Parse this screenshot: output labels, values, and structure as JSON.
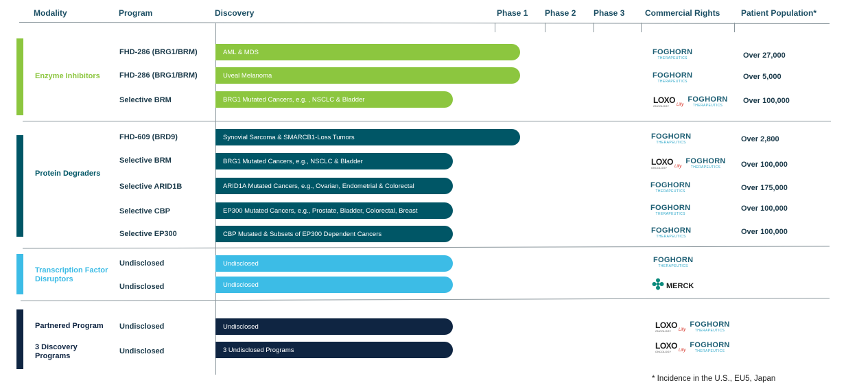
{
  "headers": {
    "modality": "Modality",
    "program": "Program",
    "discovery": "Discovery",
    "phase1": "Phase 1",
    "phase2": "Phase 2",
    "phase3": "Phase 3",
    "rights": "Commercial Rights",
    "population": "Patient Population*"
  },
  "colors": {
    "enzyme": "#8cc63f",
    "degrader": "#005666",
    "transcription": "#3cbce6",
    "partnered": "#0f2542",
    "header_text": "#1b4e63"
  },
  "logos": {
    "foghorn_main": "FOGHORN",
    "foghorn_sub": "THERAPEUTICS",
    "loxo_main": "LOXO",
    "loxo_sub": "ONCOLOGY",
    "lilly": "Lilly",
    "merck": "MERCK"
  },
  "groups": [
    {
      "label": "Enzyme Inhibitors",
      "color_key": "enzyme"
    },
    {
      "label": "Protein Degraders",
      "color_key": "degrader"
    },
    {
      "label": "Transcription Factor Disruptors",
      "color_key": "transcription"
    },
    {
      "label": "Partnered Program",
      "color_key": "partnered"
    },
    {
      "label": "3 Discovery Programs",
      "color_key": "partnered"
    }
  ],
  "chart_data": {
    "type": "table",
    "stages": [
      "Discovery",
      "Phase 1",
      "Phase 2",
      "Phase 3"
    ],
    "rows": [
      {
        "modality": "Enzyme Inhibitors",
        "program": "FHD-286 (BRG1/BRM)",
        "indication": "AML & MDS",
        "stage": "Phase 1",
        "rights": "Foghorn",
        "population": "Over 27,000"
      },
      {
        "modality": "Enzyme Inhibitors",
        "program": "FHD-286 (BRG1/BRM)",
        "indication": "Uveal Melanoma",
        "stage": "Phase 1",
        "rights": "Foghorn",
        "population": "Over 5,000"
      },
      {
        "modality": "Enzyme Inhibitors",
        "program": "Selective BRM",
        "indication": "BRG1 Mutated Cancers, e.g. , NSCLC & Bladder",
        "stage": "Discovery",
        "rights": "Loxo / Foghorn",
        "population": "Over 100,000"
      },
      {
        "modality": "Protein Degraders",
        "program": "FHD-609 (BRD9)",
        "indication": "Synovial Sarcoma & SMARCB1-Loss Tumors",
        "stage": "Phase 1",
        "rights": "Foghorn",
        "population": "Over 2,800"
      },
      {
        "modality": "Protein Degraders",
        "program": "Selective BRM",
        "indication": "BRG1 Mutated Cancers, e.g., NSCLC & Bladder",
        "stage": "Discovery",
        "rights": "Loxo / Foghorn",
        "population": "Over 100,000"
      },
      {
        "modality": "Protein Degraders",
        "program": "Selective ARID1B",
        "indication": "ARID1A Mutated Cancers, e.g., Ovarian, Endometrial & Colorectal",
        "stage": "Discovery",
        "rights": "Foghorn",
        "population": "Over 175,000"
      },
      {
        "modality": "Protein Degraders",
        "program": "Selective CBP",
        "indication": "EP300 Mutated Cancers, e.g., Prostate, Bladder, Colorectal, Breast",
        "stage": "Discovery",
        "rights": "Foghorn",
        "population": "Over 100,000"
      },
      {
        "modality": "Protein Degraders",
        "program": "Selective EP300",
        "indication": "CBP Mutated & Subsets of EP300 Dependent Cancers",
        "stage": "Discovery",
        "rights": "Foghorn",
        "population": "Over 100,000"
      },
      {
        "modality": "Transcription Factor Disruptors",
        "program": "Undisclosed",
        "indication": "Undisclosed",
        "stage": "Discovery",
        "rights": "Foghorn",
        "population": ""
      },
      {
        "modality": "Transcription Factor Disruptors",
        "program": "Undisclosed",
        "indication": "Undisclosed",
        "stage": "Discovery",
        "rights": "Merck",
        "population": ""
      },
      {
        "modality": "Partnered Program",
        "program": "Undisclosed",
        "indication": "Undisclosed",
        "stage": "Discovery",
        "rights": "Loxo / Foghorn",
        "population": ""
      },
      {
        "modality": "3 Discovery Programs",
        "program": "Undisclosed",
        "indication": "3 Undisclosed Programs",
        "stage": "Discovery",
        "rights": "Loxo / Foghorn",
        "population": ""
      }
    ]
  },
  "footnote": "* Incidence in the U.S., EU5, Japan"
}
